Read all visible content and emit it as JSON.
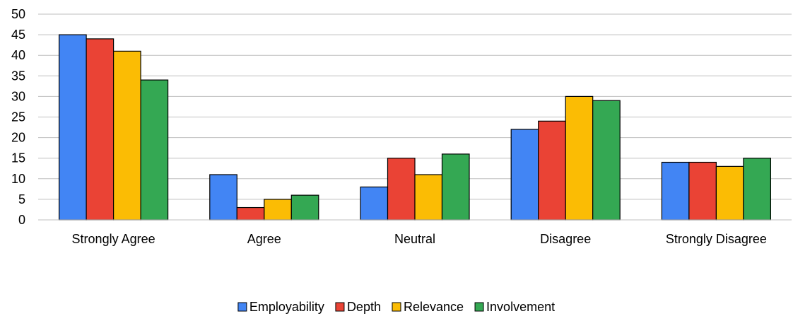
{
  "chart_data": {
    "type": "bar",
    "categories": [
      "Strongly Agree",
      "Agree",
      "Neutral",
      "Disagree",
      "Strongly Disagree"
    ],
    "series": [
      {
        "name": "Employability",
        "color": "#4285F4",
        "values": [
          45,
          11,
          8,
          22,
          14
        ]
      },
      {
        "name": "Depth",
        "color": "#EA4335",
        "values": [
          44,
          3,
          15,
          24,
          14
        ]
      },
      {
        "name": "Relevance",
        "color": "#FBBC04",
        "values": [
          41,
          5,
          11,
          30,
          13
        ]
      },
      {
        "name": "Involvement",
        "color": "#34A853",
        "values": [
          34,
          6,
          16,
          29,
          15
        ]
      }
    ],
    "title": "",
    "xlabel": "",
    "ylabel": "",
    "ylim": [
      0,
      50
    ],
    "yticks": [
      0,
      5,
      10,
      15,
      20,
      25,
      30,
      35,
      40,
      45,
      50
    ],
    "grid": true,
    "legend_position": "bottom"
  }
}
